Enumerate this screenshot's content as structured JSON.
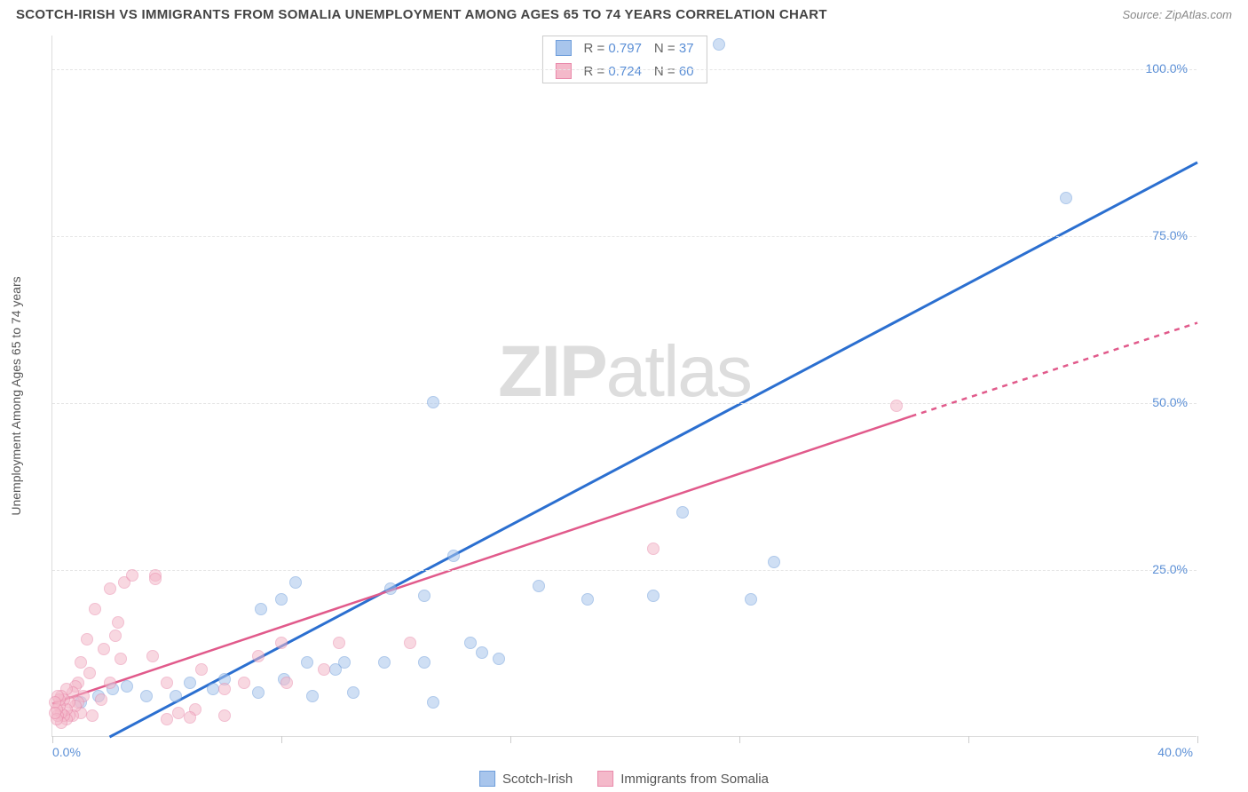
{
  "title": "SCOTCH-IRISH VS IMMIGRANTS FROM SOMALIA UNEMPLOYMENT AMONG AGES 65 TO 74 YEARS CORRELATION CHART",
  "source": "Source: ZipAtlas.com",
  "watermark_a": "ZIP",
  "watermark_b": "atlas",
  "ylabel": "Unemployment Among Ages 65 to 74 years",
  "chart": {
    "type": "scatter",
    "background_color": "#ffffff",
    "grid_color": "#e5e5e5",
    "axis_color": "#dddddd",
    "xlim": [
      0,
      40
    ],
    "ylim": [
      0,
      105
    ],
    "xticks": [
      0,
      8,
      16,
      24,
      32,
      40
    ],
    "xtick_labels": {
      "0": "0.0%",
      "40": "40.0%"
    },
    "yticks": [
      25,
      50,
      75,
      100
    ],
    "ytick_labels": {
      "25": "25.0%",
      "50": "50.0%",
      "75": "75.0%",
      "100": "100.0%"
    },
    "label_color": "#5b8fd6",
    "label_fontsize": 14,
    "point_radius": 7,
    "point_opacity": 0.55,
    "series": [
      {
        "name": "Scotch-Irish",
        "color_fill": "#a8c5ec",
        "color_stroke": "#6f9edb",
        "trend_color": "#2b6fd0",
        "trend_width": 3,
        "R": "0.797",
        "N": "37",
        "trend": {
          "x1": 2.0,
          "y1": 0,
          "x2": 40,
          "y2": 86
        },
        "points": [
          [
            23.3,
            103.5
          ],
          [
            35.4,
            80.5
          ],
          [
            13.3,
            50.0
          ],
          [
            22.0,
            33.5
          ],
          [
            25.2,
            26.0
          ],
          [
            24.4,
            20.5
          ],
          [
            18.7,
            20.5
          ],
          [
            17.0,
            22.5
          ],
          [
            21.0,
            21.0
          ],
          [
            14.0,
            27.0
          ],
          [
            13.0,
            21.0
          ],
          [
            11.8,
            22.0
          ],
          [
            8.5,
            23.0
          ],
          [
            8.0,
            20.5
          ],
          [
            7.3,
            19.0
          ],
          [
            14.6,
            14.0
          ],
          [
            15.0,
            12.5
          ],
          [
            15.6,
            11.5
          ],
          [
            13.0,
            11.0
          ],
          [
            13.3,
            5.0
          ],
          [
            11.6,
            11.0
          ],
          [
            10.2,
            11.0
          ],
          [
            9.9,
            10.0
          ],
          [
            8.9,
            11.0
          ],
          [
            8.1,
            8.5
          ],
          [
            9.1,
            6.0
          ],
          [
            10.5,
            6.5
          ],
          [
            7.2,
            6.5
          ],
          [
            6.0,
            8.5
          ],
          [
            5.6,
            7.0
          ],
          [
            4.8,
            8.0
          ],
          [
            4.3,
            6.0
          ],
          [
            3.3,
            6.0
          ],
          [
            2.6,
            7.5
          ],
          [
            2.1,
            7.0
          ],
          [
            1.6,
            6.0
          ],
          [
            1.0,
            5.0
          ]
        ]
      },
      {
        "name": "Immigrants from Somalia",
        "color_fill": "#f4b9ca",
        "color_stroke": "#e98aab",
        "trend_color": "#e15a8b",
        "trend_width": 2.5,
        "R": "0.724",
        "N": "60",
        "trend_solid": {
          "x1": 0,
          "y1": 5,
          "x2": 30,
          "y2": 48
        },
        "trend_dash": {
          "x1": 30,
          "y1": 48,
          "x2": 40,
          "y2": 62
        },
        "points": [
          [
            29.5,
            49.5
          ],
          [
            21.0,
            28.0
          ],
          [
            12.5,
            14.0
          ],
          [
            10.0,
            14.0
          ],
          [
            9.5,
            10.0
          ],
          [
            8.0,
            14.0
          ],
          [
            8.2,
            8.0
          ],
          [
            7.2,
            12.0
          ],
          [
            6.7,
            8.0
          ],
          [
            6.0,
            7.0
          ],
          [
            6.0,
            3.0
          ],
          [
            5.2,
            10.0
          ],
          [
            5.0,
            4.0
          ],
          [
            4.8,
            2.8
          ],
          [
            4.4,
            3.5
          ],
          [
            4.0,
            8.0
          ],
          [
            4.0,
            2.5
          ],
          [
            3.6,
            24.0
          ],
          [
            3.6,
            23.5
          ],
          [
            3.5,
            12.0
          ],
          [
            2.5,
            23.0
          ],
          [
            2.8,
            24.0
          ],
          [
            2.3,
            17.0
          ],
          [
            2.4,
            11.5
          ],
          [
            2.2,
            15.0
          ],
          [
            2.0,
            22.0
          ],
          [
            2.0,
            8.0
          ],
          [
            1.8,
            13.0
          ],
          [
            1.7,
            5.5
          ],
          [
            1.5,
            19.0
          ],
          [
            1.4,
            3.0
          ],
          [
            1.3,
            9.5
          ],
          [
            1.2,
            14.5
          ],
          [
            1.1,
            6.0
          ],
          [
            1.0,
            11.0
          ],
          [
            1.0,
            3.5
          ],
          [
            0.9,
            8.0
          ],
          [
            0.9,
            5.0
          ],
          [
            0.8,
            4.5
          ],
          [
            0.8,
            7.5
          ],
          [
            0.7,
            3.0
          ],
          [
            0.7,
            6.5
          ],
          [
            0.6,
            5.0
          ],
          [
            0.6,
            3.0
          ],
          [
            0.5,
            7.0
          ],
          [
            0.5,
            2.5
          ],
          [
            0.5,
            4.0
          ],
          [
            0.4,
            5.5
          ],
          [
            0.4,
            3.0
          ],
          [
            0.3,
            6.0
          ],
          [
            0.3,
            3.5
          ],
          [
            0.3,
            2.0
          ],
          [
            0.25,
            4.5
          ],
          [
            0.25,
            5.5
          ],
          [
            0.2,
            3.0
          ],
          [
            0.2,
            6.0
          ],
          [
            0.15,
            4.0
          ],
          [
            0.15,
            2.5
          ],
          [
            0.1,
            5.0
          ],
          [
            0.1,
            3.5
          ]
        ]
      }
    ]
  },
  "legend_labels": {
    "series1": "Scotch-Irish",
    "series2": "Immigrants from Somalia",
    "R_prefix": "R  = ",
    "N_prefix": "N  = "
  }
}
